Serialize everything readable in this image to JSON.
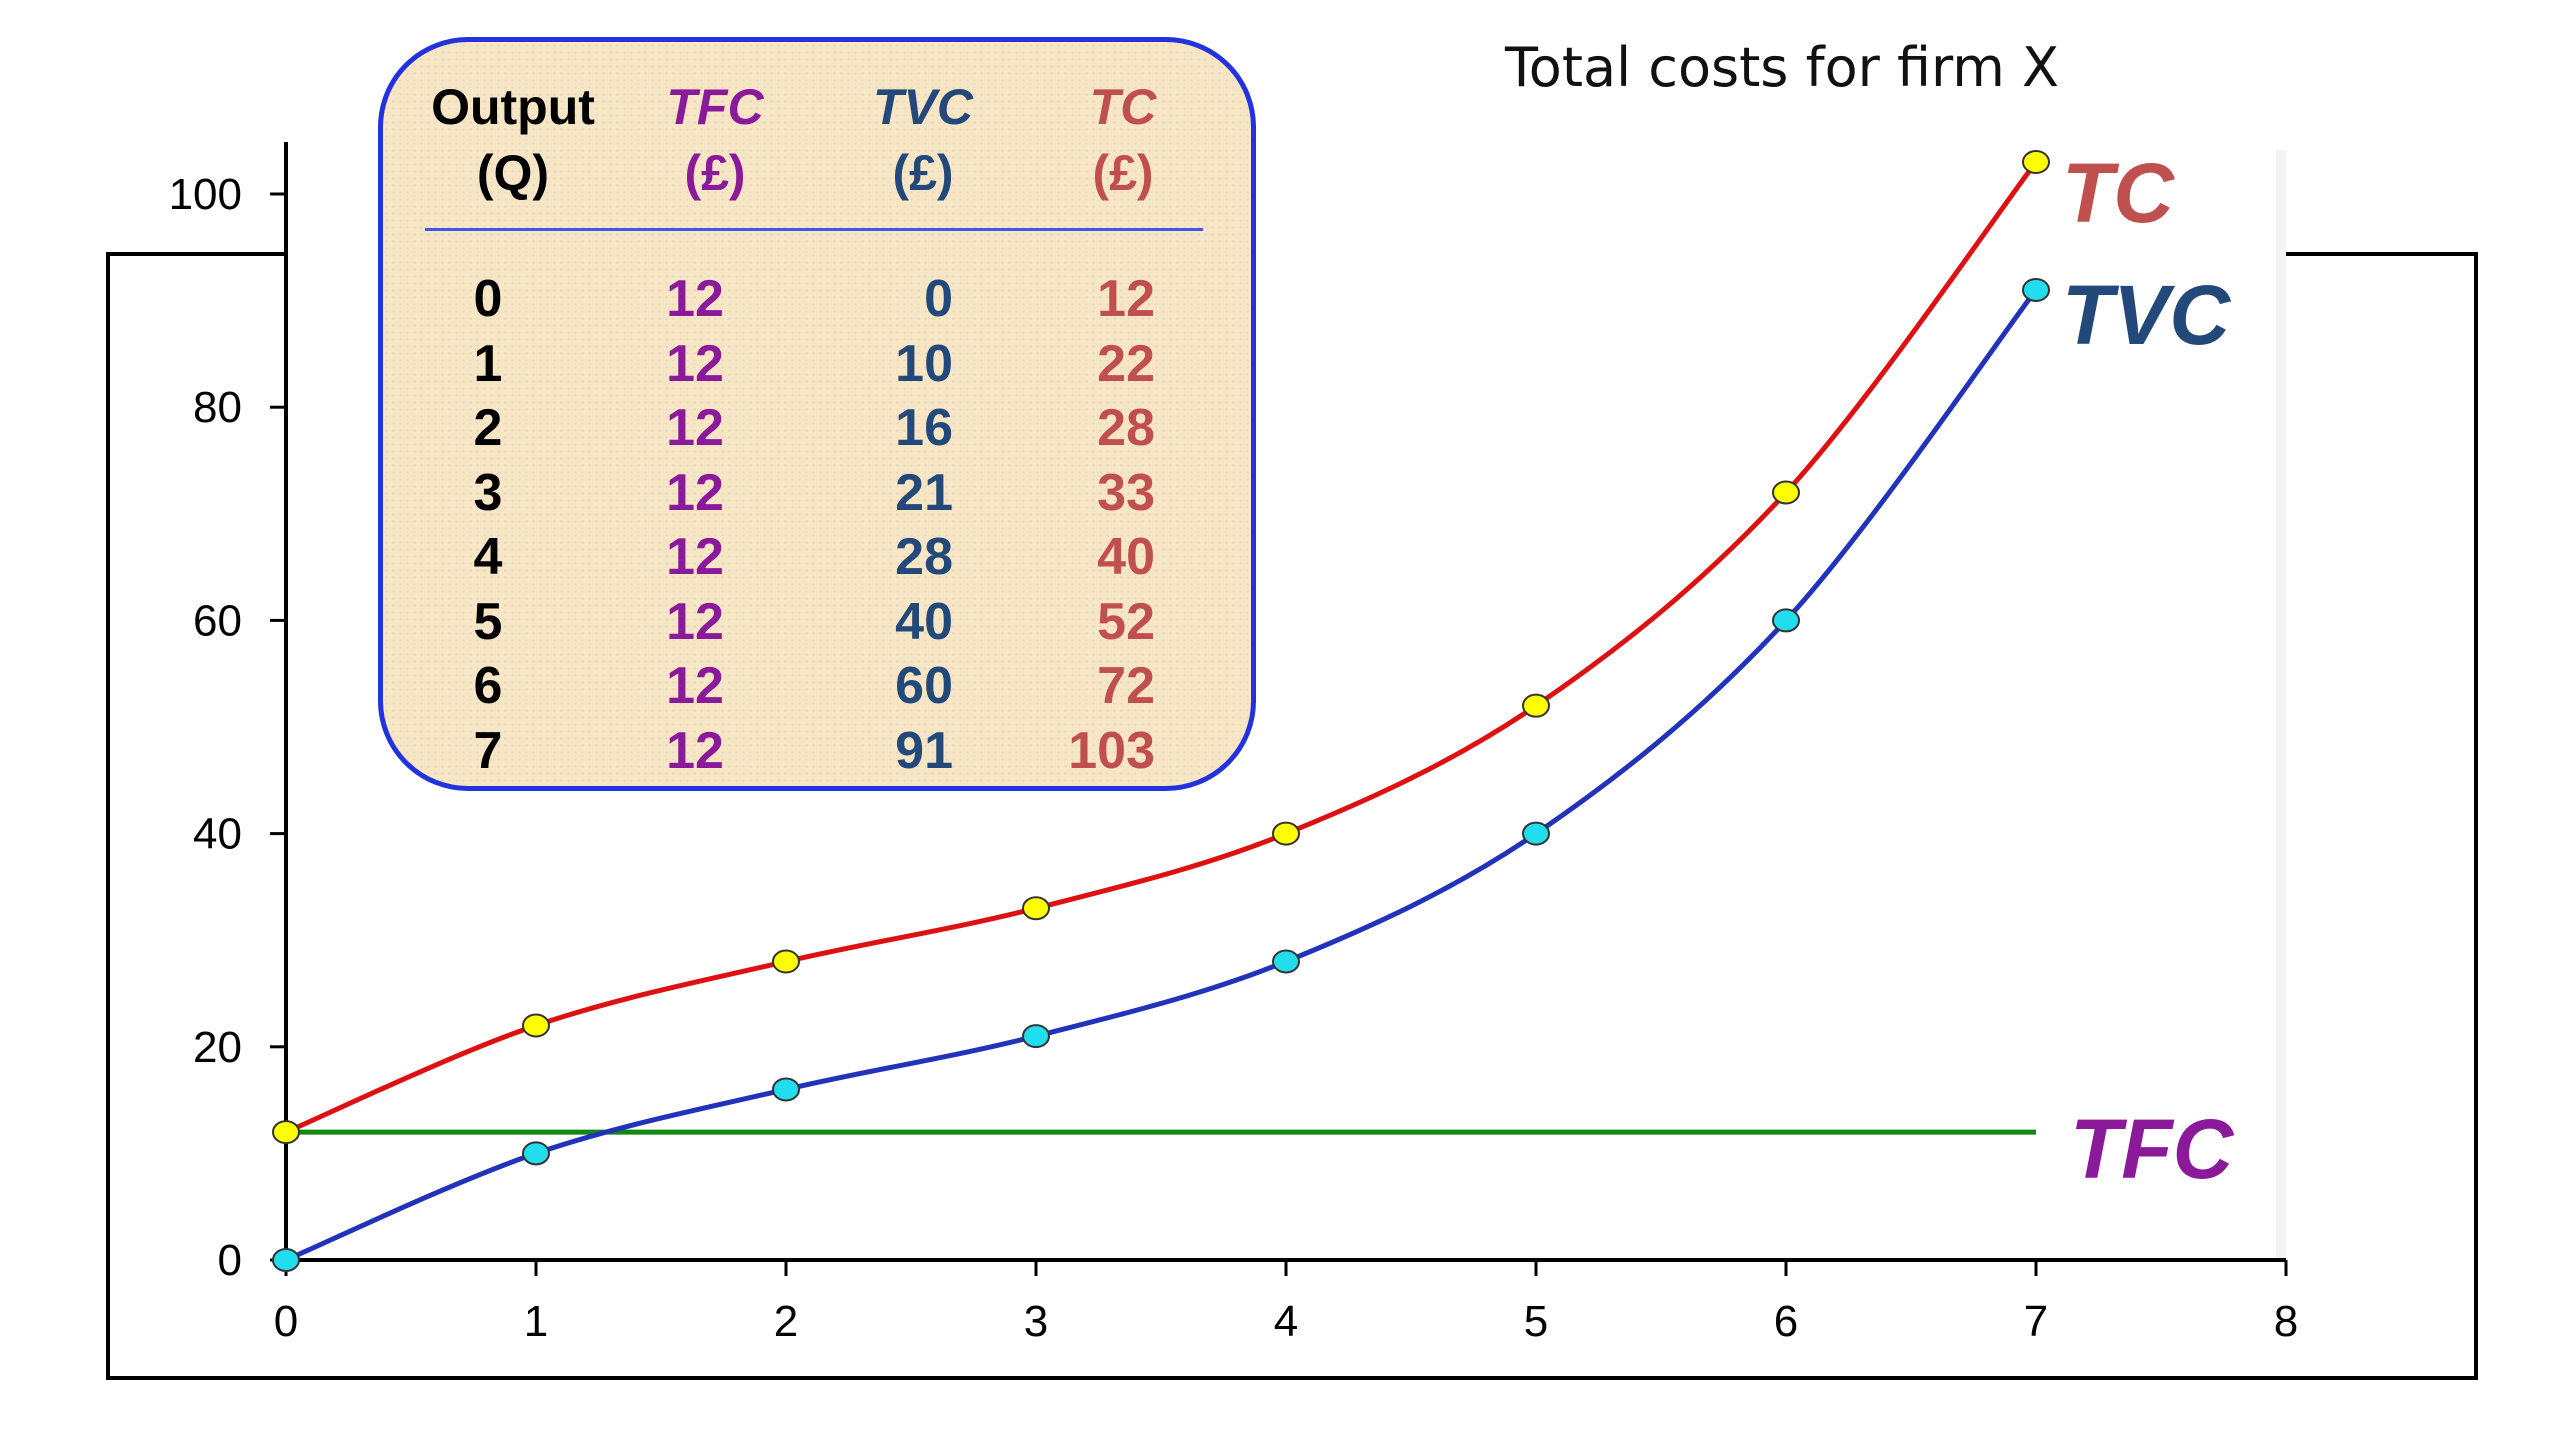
{
  "chart_data": {
    "type": "line",
    "title": "Total costs for firm X",
    "xlabel": "",
    "ylabel": "",
    "xlim": [
      0,
      8
    ],
    "ylim": [
      0,
      100
    ],
    "x_ticks": [
      "0",
      "1",
      "2",
      "3",
      "4",
      "5",
      "6",
      "7",
      "8"
    ],
    "y_ticks": [
      "0",
      "20",
      "40",
      "60",
      "80",
      "100"
    ],
    "x": [
      0,
      1,
      2,
      3,
      4,
      5,
      6,
      7
    ],
    "series": [
      {
        "name": "TC",
        "values": [
          12,
          22,
          28,
          33,
          40,
          52,
          72,
          103
        ],
        "color": "#dd1111",
        "marker_color": "#ffff00"
      },
      {
        "name": "TVC",
        "values": [
          0,
          10,
          16,
          21,
          28,
          40,
          60,
          91
        ],
        "color": "#2233bb",
        "marker_color": "#22ddee"
      },
      {
        "name": "TFC",
        "values": [
          12,
          12,
          12,
          12,
          12,
          12,
          12,
          12
        ],
        "color": "#118811"
      }
    ],
    "series_label_colors": {
      "TC": "#c0504d",
      "TVC": "#23487a",
      "TFC": "#8a1a9a"
    },
    "grid": false
  },
  "table": {
    "headers": {
      "output": {
        "line1": "Output",
        "line2": "(Q)"
      },
      "tfc": {
        "line1": "TFC",
        "line2": "(£)"
      },
      "tvc": {
        "line1": "TVC",
        "line2": "(£)"
      },
      "tc": {
        "line1": "TC",
        "line2": "(£)"
      }
    },
    "rows": [
      {
        "q": "0",
        "tfc": "12",
        "tvc": "0",
        "tc": "12"
      },
      {
        "q": "1",
        "tfc": "12",
        "tvc": "10",
        "tc": "22"
      },
      {
        "q": "2",
        "tfc": "12",
        "tvc": "16",
        "tc": "28"
      },
      {
        "q": "3",
        "tfc": "12",
        "tvc": "21",
        "tc": "33"
      },
      {
        "q": "4",
        "tfc": "12",
        "tvc": "28",
        "tc": "40"
      },
      {
        "q": "5",
        "tfc": "12",
        "tvc": "40",
        "tc": "52"
      },
      {
        "q": "6",
        "tfc": "12",
        "tvc": "60",
        "tc": "72"
      },
      {
        "q": "7",
        "tfc": "12",
        "tvc": "91",
        "tc": "103"
      }
    ]
  }
}
